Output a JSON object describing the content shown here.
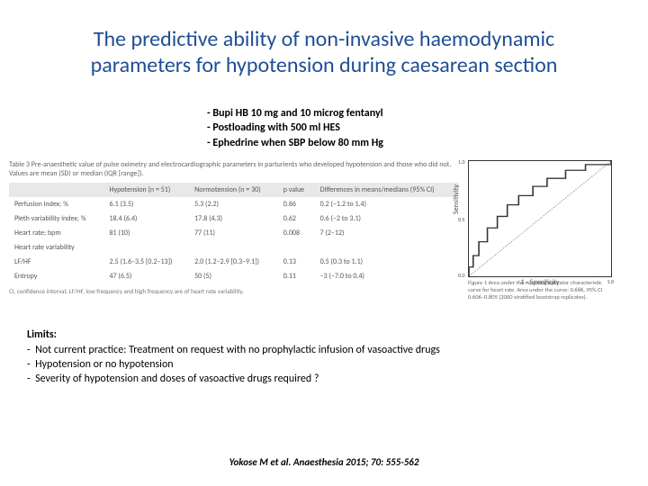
{
  "title": "The predictive ability of non-invasive haemodynamic parameters for hypotension during caesarean section",
  "protocol": [
    "- Bupi HB 10 mg and 10 microg fentanyl",
    "- Postloading with 500 ml HES",
    "- Ephedrine when SBP below 80 mm Hg"
  ],
  "table": {
    "caption": "Table 3 Pre-anaesthetic value of pulse oximetry and electrocardiographic parameters in parturients who developed hypotension and those who did not. Values are mean (SD) or median (IQR [range]).",
    "columns": [
      "",
      "Hypotension (n = 51)",
      "Normotension (n = 30)",
      "p value",
      "Differences in means/medians (95% CI)"
    ],
    "rows": [
      [
        "Perfusion index; %",
        "6.1 (3.5)",
        "5.3 (2.2)",
        "0.86",
        "0.2 (−1.2 to 1.4)"
      ],
      [
        "Pleth variability index; %",
        "18.4 (6.4)",
        "17.8 (4.3)",
        "0.62",
        "0.6 (−2 to 3.1)"
      ],
      [
        "Heart rate; bpm",
        "81 (10)",
        "77 (11)",
        "0.008",
        "7 (2–12)"
      ],
      [
        "Heart rate variability",
        "",
        "",
        "",
        ""
      ],
      [
        "  LF/HF",
        "2.5 (1.6–3.5 [0.2–13])",
        "2.0 (1.2–2.9 [0.3–9.1])",
        "0.13",
        "0.5 (0.3 to 1.1)"
      ],
      [
        "  Entropy",
        "47 (6.5)",
        "50 (5)",
        "0.11",
        "−3 (−7.0 to 0.4)"
      ]
    ],
    "footer": "CI, confidence interval; LF/HF, low frequency and high frequency are of heart rate variability."
  },
  "chart": {
    "type": "roc-curve",
    "xlabel": "1 - Specificity",
    "ylabel": "Sensitivity",
    "xlim": [
      0,
      1
    ],
    "ylim": [
      0,
      1
    ],
    "tick_positions": [
      0.0,
      0.2,
      0.4,
      0.6,
      0.8,
      1.0
    ],
    "line_color": "#333333",
    "line_width": 1.2,
    "diagonal_color": "#888888",
    "background": "#ffffff",
    "points": [
      [
        0.0,
        0.0
      ],
      [
        0.0,
        0.08
      ],
      [
        0.03,
        0.08
      ],
      [
        0.03,
        0.18
      ],
      [
        0.07,
        0.18
      ],
      [
        0.07,
        0.3
      ],
      [
        0.13,
        0.3
      ],
      [
        0.13,
        0.42
      ],
      [
        0.2,
        0.42
      ],
      [
        0.2,
        0.52
      ],
      [
        0.27,
        0.52
      ],
      [
        0.27,
        0.62
      ],
      [
        0.35,
        0.62
      ],
      [
        0.35,
        0.7
      ],
      [
        0.45,
        0.7
      ],
      [
        0.45,
        0.78
      ],
      [
        0.55,
        0.78
      ],
      [
        0.55,
        0.85
      ],
      [
        0.68,
        0.85
      ],
      [
        0.68,
        0.92
      ],
      [
        0.82,
        0.92
      ],
      [
        0.82,
        0.97
      ],
      [
        1.0,
        0.97
      ],
      [
        1.0,
        1.0
      ]
    ],
    "caption": "Figure 1 Area under the receiving operator characteristic curve for heart rate. Area under the curve: 0.686, 95% CI 0.606–0.805 (2000 stratified bootstrap replicates)."
  },
  "limits": {
    "heading": "Limits:",
    "items": [
      "Not current practice: Treatment on request with no prophylactic infusion of vasoactive drugs",
      "Hypotension or no hypotension",
      "Severity of hypotension and doses of vasoactive drugs required ?"
    ]
  },
  "citation": "Yokose M et al. Anaesthesia 2015; 70: 555-562"
}
